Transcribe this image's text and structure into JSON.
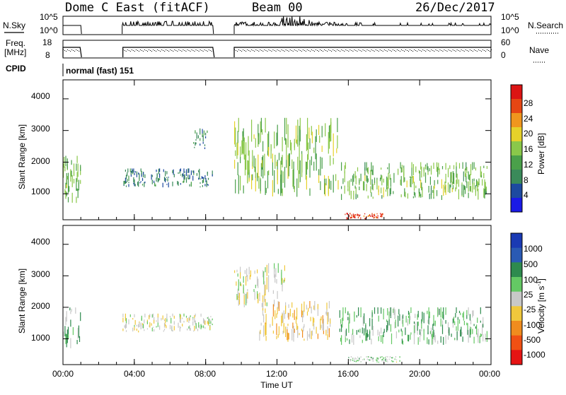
{
  "header": {
    "station": "Dome C East (fitACF)",
    "beam": "Beam 00",
    "date": "26/Dec/2017"
  },
  "strips": {
    "nsky_label": "N.Sky",
    "nsky_ticks": [
      "10^5",
      "10^0"
    ],
    "nsearch_label": "N.Search",
    "nsearch_ticks": [
      "10^5",
      "10^0"
    ],
    "freq_label_1": "Freq.",
    "freq_label_2": "[MHz]",
    "freq_ticks": [
      "18",
      "8"
    ],
    "nave_label": "Nave",
    "nave_ticks": [
      "60",
      "0"
    ],
    "cpid_label": "CPID",
    "cpid_text": "normal (fast) 151"
  },
  "x_axis": {
    "label": "Time UT",
    "ticks": [
      "00:00",
      "04:00",
      "08:00",
      "12:00",
      "16:00",
      "20:00",
      "00:00"
    ]
  },
  "power_panel": {
    "ylabel": "Slant Range [km]",
    "yticks": [
      "4000",
      "3000",
      "2000",
      "1000"
    ],
    "colorbar_label": "Power [dB]",
    "colorbar_ticks": [
      "28",
      "24",
      "20",
      "16",
      "12",
      "8",
      "4"
    ]
  },
  "velocity_panel": {
    "ylabel": "Slant Range [km]",
    "yticks": [
      "4000",
      "3000",
      "2000",
      "1000"
    ],
    "colorbar_label": "Velocity [m s",
    "colorbar_sup": "-1",
    "colorbar_close": "]",
    "colorbar_ticks": [
      "1000",
      "500",
      "100",
      "25",
      "-25",
      "-100",
      "-500",
      "-1000"
    ]
  },
  "colors": {
    "power_scale": [
      "#1a1ae6",
      "#1d4aa0",
      "#3a8a5a",
      "#4aa04a",
      "#8ac84a",
      "#e6d22a",
      "#f0961e",
      "#e64614",
      "#dc1414"
    ],
    "velocity_scale": [
      "#e61414",
      "#f05014",
      "#f08c1e",
      "#f0c83c",
      "#c8c8c8",
      "#64c864",
      "#2e8a4e",
      "#2a5ab4",
      "#1a3ab4"
    ]
  },
  "chart_data": [
    {
      "type": "heatmap",
      "title": "Power",
      "xlabel": "Time UT",
      "ylabel": "Slant Range [km]",
      "xlim_hours": [
        0,
        24
      ],
      "ylim": [
        180,
        4600
      ],
      "colorbar": "Power [dB]",
      "clim": [
        0,
        32
      ],
      "data_gaps_hours": [
        [
          1.0,
          3.3
        ],
        [
          8.4,
          9.6
        ]
      ],
      "echo_regions": [
        {
          "t": [
            0.0,
            1.0
          ],
          "r": [
            700,
            2200
          ],
          "level": 14
        },
        {
          "t": [
            3.3,
            8.4
          ],
          "r": [
            1200,
            1800
          ],
          "level": 8
        },
        {
          "t": [
            7.3,
            8.2
          ],
          "r": [
            2400,
            3100
          ],
          "level": 9
        },
        {
          "t": [
            9.6,
            15.5
          ],
          "r": [
            900,
            3400
          ],
          "level": 15
        },
        {
          "t": [
            15.5,
            23.8
          ],
          "r": [
            800,
            2000
          ],
          "level": 14
        },
        {
          "t": [
            15.8,
            18.0
          ],
          "r": [
            200,
            400
          ],
          "level": 28
        }
      ]
    },
    {
      "type": "heatmap",
      "title": "Velocity",
      "xlabel": "Time UT",
      "ylabel": "Slant Range [km]",
      "xlim_hours": [
        0,
        24
      ],
      "ylim": [
        180,
        4600
      ],
      "colorbar": "Velocity [m s-1]",
      "clim": [
        -1000,
        1000
      ],
      "data_gaps_hours": [
        [
          1.0,
          3.3
        ],
        [
          8.4,
          9.6
        ]
      ],
      "echo_regions": [
        {
          "t": [
            0.0,
            1.0
          ],
          "r": [
            700,
            2200
          ],
          "level": 200
        },
        {
          "t": [
            3.3,
            8.4
          ],
          "r": [
            1200,
            1800
          ],
          "level": 0
        },
        {
          "t": [
            9.6,
            12.5
          ],
          "r": [
            2000,
            3400
          ],
          "level": 0
        },
        {
          "t": [
            11.0,
            15.0
          ],
          "r": [
            900,
            2200
          ],
          "level": -150
        },
        {
          "t": [
            15.5,
            23.8
          ],
          "r": [
            800,
            2000
          ],
          "level": 250
        },
        {
          "t": [
            16.0,
            19.0
          ],
          "r": [
            250,
            450
          ],
          "level": 120
        }
      ]
    }
  ]
}
